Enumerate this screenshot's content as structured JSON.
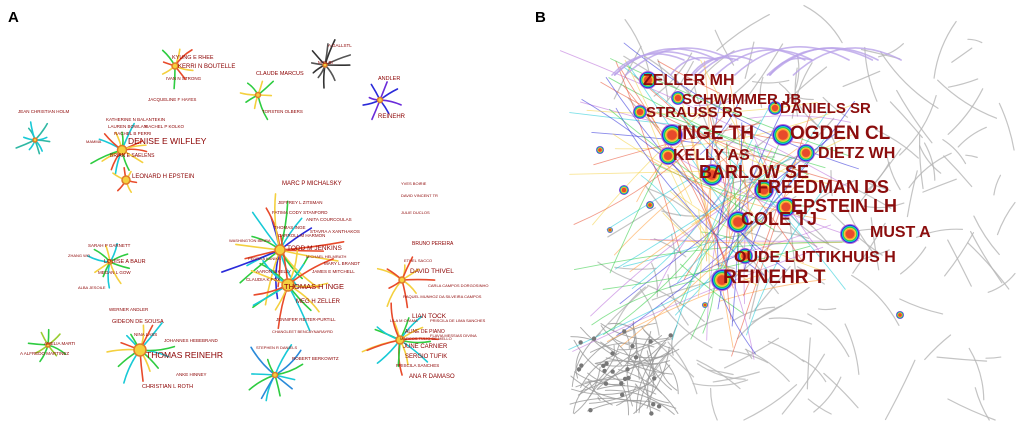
{
  "panel_a": {
    "letter": "A",
    "labels": [
      {
        "id": "kyung-e-rhee",
        "text": "KYUNG E RHEE"
      },
      {
        "id": "kerri-n-boutelle",
        "text": "KERRI N BOUTELLE"
      },
      {
        "id": "ivan-n-strong",
        "text": "IVAN N STRONG"
      },
      {
        "id": "jacqueline-f-hayes",
        "text": "JACQUELINE F HAYES"
      },
      {
        "id": "claude-marcus",
        "text": "CLAUDE MARCUS"
      },
      {
        "id": "torsten-olbers",
        "text": "TORSTEN OLBERS"
      },
      {
        "id": "a-gallstl",
        "text": "A GALLSTL"
      },
      {
        "id": "m-elbi",
        "text": "M ELBI"
      },
      {
        "id": "andler",
        "text": "ANDLER"
      },
      {
        "id": "reinehr",
        "text": "REINEHR"
      },
      {
        "id": "jean-christian-holm",
        "text": "JEAN CHRISTIAN HOLM"
      },
      {
        "id": "katherine-n-balantekin",
        "text": "KATHERINE N BALANTEKIN"
      },
      {
        "id": "lauren-bowlan",
        "text": "LAUREN BOWLAN"
      },
      {
        "id": "rachel-p-kolko",
        "text": "RACHEL P KOLKO"
      },
      {
        "id": "rachel-b-perri",
        "text": "RACHEL B PERRI"
      },
      {
        "id": "denise-e-wilfley",
        "text": "DENISE E WILFLEY"
      },
      {
        "id": "mamma",
        "text": "MAMMA"
      },
      {
        "id": "brian-e-saelens",
        "text": "BRIAN E SAELENS"
      },
      {
        "id": "leonard-h-epstein",
        "text": "LEONARD H EPSTEIN"
      },
      {
        "id": "marc-p-michalsky",
        "text": "MARC P MICHALSKY"
      },
      {
        "id": "jeffrey-l-zitsman",
        "text": "JEFFREY L ZITSMAN"
      },
      {
        "id": "fatima-cody-stanford",
        "text": "FATIMA CODY STANFORD"
      },
      {
        "id": "thomas-inge-small",
        "text": "THOMAS INGE"
      },
      {
        "id": "anita-courcoulas",
        "text": "ANITA COURCOULAS"
      },
      {
        "id": "todd-m-jenkins",
        "text": "TODD M JENKINS"
      },
      {
        "id": "carroll-m-harmon",
        "text": "CARROLL M HARMON"
      },
      {
        "id": "stavra-a-xanthakos",
        "text": "STAVRA A XANTHAKOS"
      },
      {
        "id": "washington-ibeira",
        "text": "WASHINGTON IBEIRA"
      },
      {
        "id": "michael-helmrath",
        "text": "MICHAEL HELMRATH"
      },
      {
        "id": "pedra-a-kanika",
        "text": "PEDRA A KANIKA"
      },
      {
        "id": "mary-l-brandt",
        "text": "MARY L BRANDT"
      },
      {
        "id": "aaron-s-kelly",
        "text": "AARON S KELLY"
      },
      {
        "id": "james-e-mitchell",
        "text": "JAMES E MITCHELL"
      },
      {
        "id": "claudia-k-fox",
        "text": "CLAUDIA K FOX"
      },
      {
        "id": "thomas-h-inge",
        "text": "THOMAS H INGE"
      },
      {
        "id": "meg-h-zeller",
        "text": "MEG H ZELLER"
      },
      {
        "id": "jennifer-reiter-purtill",
        "text": "JENNIFER REITER-PURTILL"
      },
      {
        "id": "changleet-bencaynarayrd",
        "text": "CHANGLEET BENCAYNARAYRD"
      },
      {
        "id": "stephen-r-daniels",
        "text": "STEPHEN R DANIELS"
      },
      {
        "id": "robert-berkowitz",
        "text": "ROBERT BERKOWITZ"
      },
      {
        "id": "sarah-p-garnett",
        "text": "SARAH P GARNETT"
      },
      {
        "id": "louise-a-baur",
        "text": "LOUISE A BAUR"
      },
      {
        "id": "zhang-wo",
        "text": "ZHANG WO"
      },
      {
        "id": "megan-l-gow",
        "text": "MEGAN L GOW"
      },
      {
        "id": "alba-jesoile",
        "text": "ALBA JESOILE"
      },
      {
        "id": "werner-andler",
        "text": "WERNER ANDLER"
      },
      {
        "id": "gideon-de-sousa",
        "text": "GIDEON DE SOUSA"
      },
      {
        "id": "nina-lass",
        "text": "NINA LASS"
      },
      {
        "id": "johannes-hebebrand",
        "text": "JOHANNES HEBEBRAND"
      },
      {
        "id": "thomas-reinehr",
        "text": "THOMAS REINEHR"
      },
      {
        "id": "amelia-marti",
        "text": "AMELIA MARTI"
      },
      {
        "id": "a-alfredo-martinez",
        "text": "A ALFREDO MARTINEZ"
      },
      {
        "id": "mike-hinney",
        "text": "ANKE HINNEY"
      },
      {
        "id": "christian-l-roth",
        "text": "CHRISTIAN L ROTH"
      },
      {
        "id": "yves-boirie",
        "text": "YVES BOIRIE"
      },
      {
        "id": "david-vincent-tr",
        "text": "DAVID VINCENT TR"
      },
      {
        "id": "julie-duclos",
        "text": "JULIE DUCLOS"
      },
      {
        "id": "bruno-pereira",
        "text": "BRUNO PEREIRA"
      },
      {
        "id": "ethel-sacco",
        "text": "ETHEL SACCO"
      },
      {
        "id": "david-thivel",
        "text": "DAVID THIVEL"
      },
      {
        "id": "carla-campos-dorgosinho",
        "text": "CARLA CAMPOS DORGOSINHO"
      },
      {
        "id": "raquel-munhoz",
        "text": "RAQUEL MUNHOZ DA SILVEIRA CAMPOS"
      },
      {
        "id": "lian-tock",
        "text": "LIAN TOCK"
      },
      {
        "id": "lila-m-oyama",
        "text": "LILA M OYAMA"
      },
      {
        "id": "priscila-de-lima-sanches",
        "text": "PRISCILA DE LIMA SANCHES"
      },
      {
        "id": "aline-de-piano",
        "text": "ALINE DE PIANO"
      },
      {
        "id": "flavia-m-ribas",
        "text": "FLAVIA MESSIAS DIVINA"
      },
      {
        "id": "marcos-tulio-de-mello",
        "text": "MARCOS TULIO DE MELLO"
      },
      {
        "id": "june-carnier",
        "text": "JUNE CARNIER"
      },
      {
        "id": "sergio-tufik",
        "text": "SERGIO TUFIK"
      },
      {
        "id": "priscila-sanches",
        "text": "PRISCILA SANCHES"
      },
      {
        "id": "ana-r-damaso",
        "text": "ANA R DAMASO"
      }
    ]
  },
  "panel_b": {
    "letter": "B",
    "labels": [
      {
        "id": "zeller-mh",
        "text": "ZELLER MH"
      },
      {
        "id": "schwimmer-jb",
        "text": "SCHWIMMER JB"
      },
      {
        "id": "strauss-rs",
        "text": "STRAUSS RS"
      },
      {
        "id": "daniels-sr",
        "text": "DANIELS SR"
      },
      {
        "id": "inge-th",
        "text": "INGE TH"
      },
      {
        "id": "ogden-cl",
        "text": "OGDEN CL"
      },
      {
        "id": "kelly-as",
        "text": "KELLY AS"
      },
      {
        "id": "dietz-wh",
        "text": "DIETZ WH"
      },
      {
        "id": "barlow-se",
        "text": "BARLOW SE"
      },
      {
        "id": "freedman-ds",
        "text": "FREEDMAN DS"
      },
      {
        "id": "epstein-lh",
        "text": "EPSTEIN LH"
      },
      {
        "id": "cole-tj",
        "text": "COLE TJ"
      },
      {
        "id": "must-a",
        "text": "MUST A"
      },
      {
        "id": "oude-luttikhuis-h",
        "text": "OUDE LUTTIKHUIS H"
      },
      {
        "id": "reinehr-t",
        "text": "REINEHR T"
      }
    ]
  }
}
